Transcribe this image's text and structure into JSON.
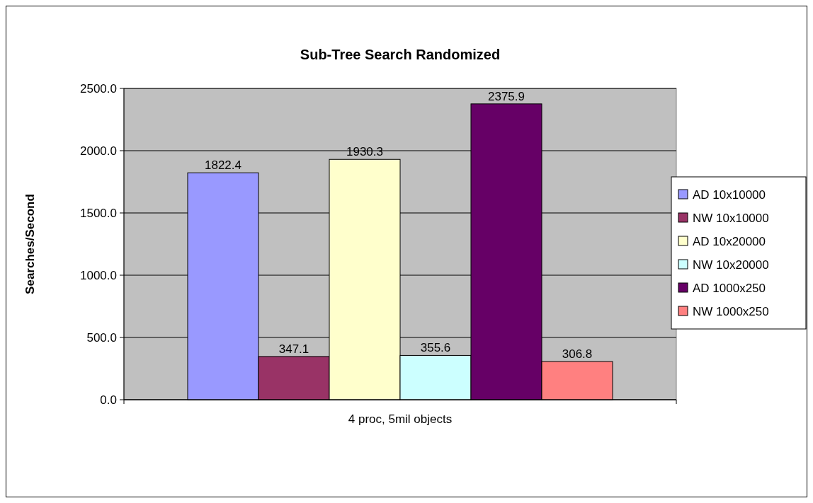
{
  "chart_data": {
    "type": "bar",
    "title": "Sub-Tree Search Randomized",
    "ylabel": "Searches/Second",
    "categories": [
      "4 proc, 5mil objects"
    ],
    "series": [
      {
        "name": "AD 10x10000",
        "color": "#9999ff",
        "values": [
          1822.4
        ]
      },
      {
        "name": "NW 10x10000",
        "color": "#993366",
        "values": [
          347.1
        ]
      },
      {
        "name": "AD 10x20000",
        "color": "#ffffcc",
        "values": [
          1930.3
        ]
      },
      {
        "name": "NW 10x20000",
        "color": "#ccffff",
        "values": [
          355.6
        ]
      },
      {
        "name": "AD 1000x250",
        "color": "#660066",
        "values": [
          2375.9
        ]
      },
      {
        "name": "NW 1000x250",
        "color": "#ff8080",
        "values": [
          306.8
        ]
      }
    ],
    "ylim": [
      0,
      2500
    ],
    "yticks": [
      {
        "value": 0,
        "label": "0.0"
      },
      {
        "value": 500,
        "label": "500.0"
      },
      {
        "value": 1000,
        "label": "1000.0"
      },
      {
        "value": 1500,
        "label": "1500.0"
      },
      {
        "value": 2000,
        "label": "2000.0"
      },
      {
        "value": 2500,
        "label": "2500.0"
      }
    ],
    "grid": "y",
    "legend": "right",
    "data_labels": true
  }
}
